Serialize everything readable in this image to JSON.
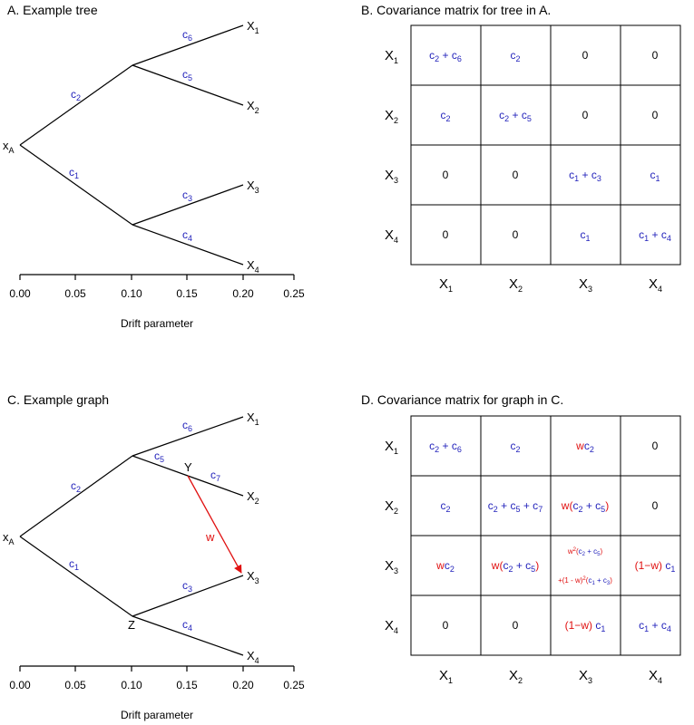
{
  "panels": {
    "a_title": "A. Example tree",
    "b_title": "B. Covariance matrix for tree in A.",
    "c_title": "C. Example graph",
    "d_title": "D. Covariance matrix for graph in C."
  },
  "axis": {
    "title": "Drift parameter",
    "ticks": [
      "0.00",
      "0.05",
      "0.10",
      "0.15",
      "0.20",
      "0.25"
    ]
  },
  "tips": [
    "X",
    "X",
    "X",
    "X"
  ],
  "tip_subs": [
    "1",
    "2",
    "3",
    "4"
  ],
  "root": {
    "main": "x",
    "sub": "A"
  },
  "internal_nodes": {
    "y": "Y",
    "z": "Z"
  },
  "admixture_weight": "w",
  "colors": {
    "edge_label": "#2222bb",
    "admixture": "#e01010",
    "line": "#000000"
  },
  "matrix_labels": {
    "rows": [
      {
        "m": "X",
        "s": "1"
      },
      {
        "m": "X",
        "s": "2"
      },
      {
        "m": "X",
        "s": "3"
      },
      {
        "m": "X",
        "s": "4"
      }
    ],
    "cols": [
      {
        "m": "X",
        "s": "1"
      },
      {
        "m": "X",
        "s": "2"
      },
      {
        "m": "X",
        "s": "3"
      },
      {
        "m": "X",
        "s": "4"
      }
    ]
  }
}
